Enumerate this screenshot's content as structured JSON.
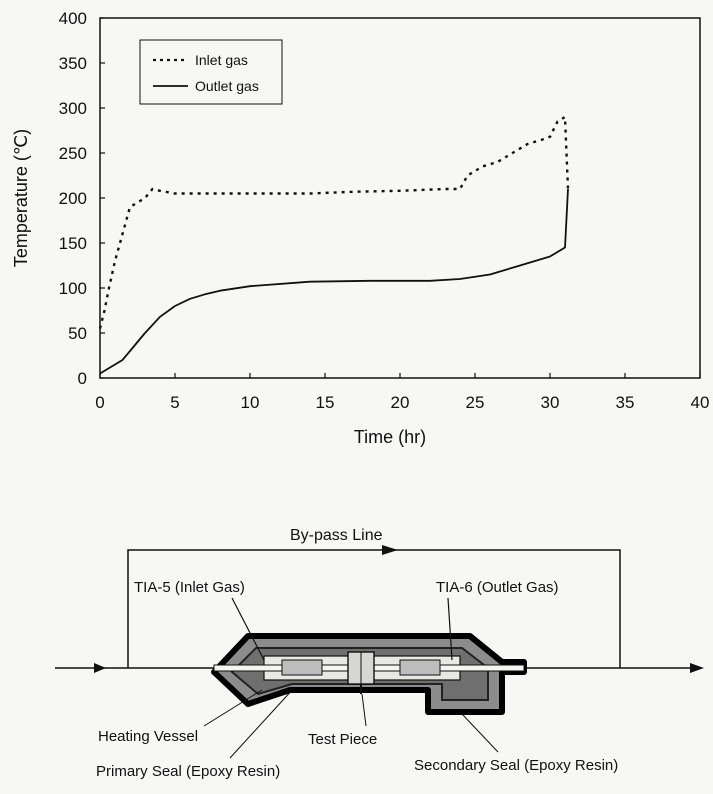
{
  "chart_data": {
    "type": "line",
    "title": "",
    "xlabel": "Time (hr)",
    "ylabel": "Temperature (℃)",
    "xlim": [
      0,
      40
    ],
    "ylim": [
      0,
      400
    ],
    "x_ticks": [
      0,
      5,
      10,
      15,
      20,
      25,
      30,
      35,
      40
    ],
    "y_ticks": [
      0,
      50,
      100,
      150,
      200,
      250,
      300,
      350,
      400
    ],
    "grid": false,
    "legend_position": "top-left",
    "series": [
      {
        "name": "Inlet gas",
        "style": "dotted",
        "color": "#111111",
        "x": [
          0,
          0.3,
          0.6,
          1.0,
          1.5,
          2.0,
          2.5,
          3.0,
          3.5,
          4.0,
          5.0,
          7.0,
          10.0,
          14.0,
          17.0,
          20.0,
          23.0,
          24.0,
          24.5,
          25.5,
          26.5,
          27.5,
          28.5,
          29.5,
          30.0,
          30.5,
          31.0,
          31.2
        ],
        "y": [
          55,
          75,
          100,
          130,
          160,
          190,
          195,
          200,
          210,
          208,
          205,
          205,
          205,
          205,
          207,
          208,
          210,
          210,
          225,
          235,
          240,
          250,
          260,
          265,
          268,
          285,
          290,
          210
        ]
      },
      {
        "name": "Outlet gas",
        "style": "solid",
        "color": "#111111",
        "x": [
          0,
          0.5,
          1.0,
          1.5,
          2.0,
          3.0,
          4.0,
          5.0,
          6.0,
          7.0,
          8.0,
          10.0,
          14.0,
          18.0,
          22.0,
          24.0,
          26.0,
          28.0,
          30.0,
          31.0,
          31.2
        ],
        "y": [
          5,
          10,
          15,
          20,
          30,
          50,
          68,
          80,
          88,
          93,
          97,
          102,
          107,
          108,
          108,
          110,
          115,
          125,
          135,
          145,
          210
        ]
      }
    ]
  },
  "diagram": {
    "bypass_label": "By-pass Line",
    "labels": {
      "tia5": "TIA-5 (Inlet Gas)",
      "tia6": "TIA-6 (Outlet Gas)",
      "heating_vessel": "Heating Vessel",
      "test_piece": "Test Piece",
      "primary_seal": "Primary Seal (Epoxy Resin)",
      "secondary_seal": "Secondary Seal (Epoxy Resin)"
    }
  }
}
